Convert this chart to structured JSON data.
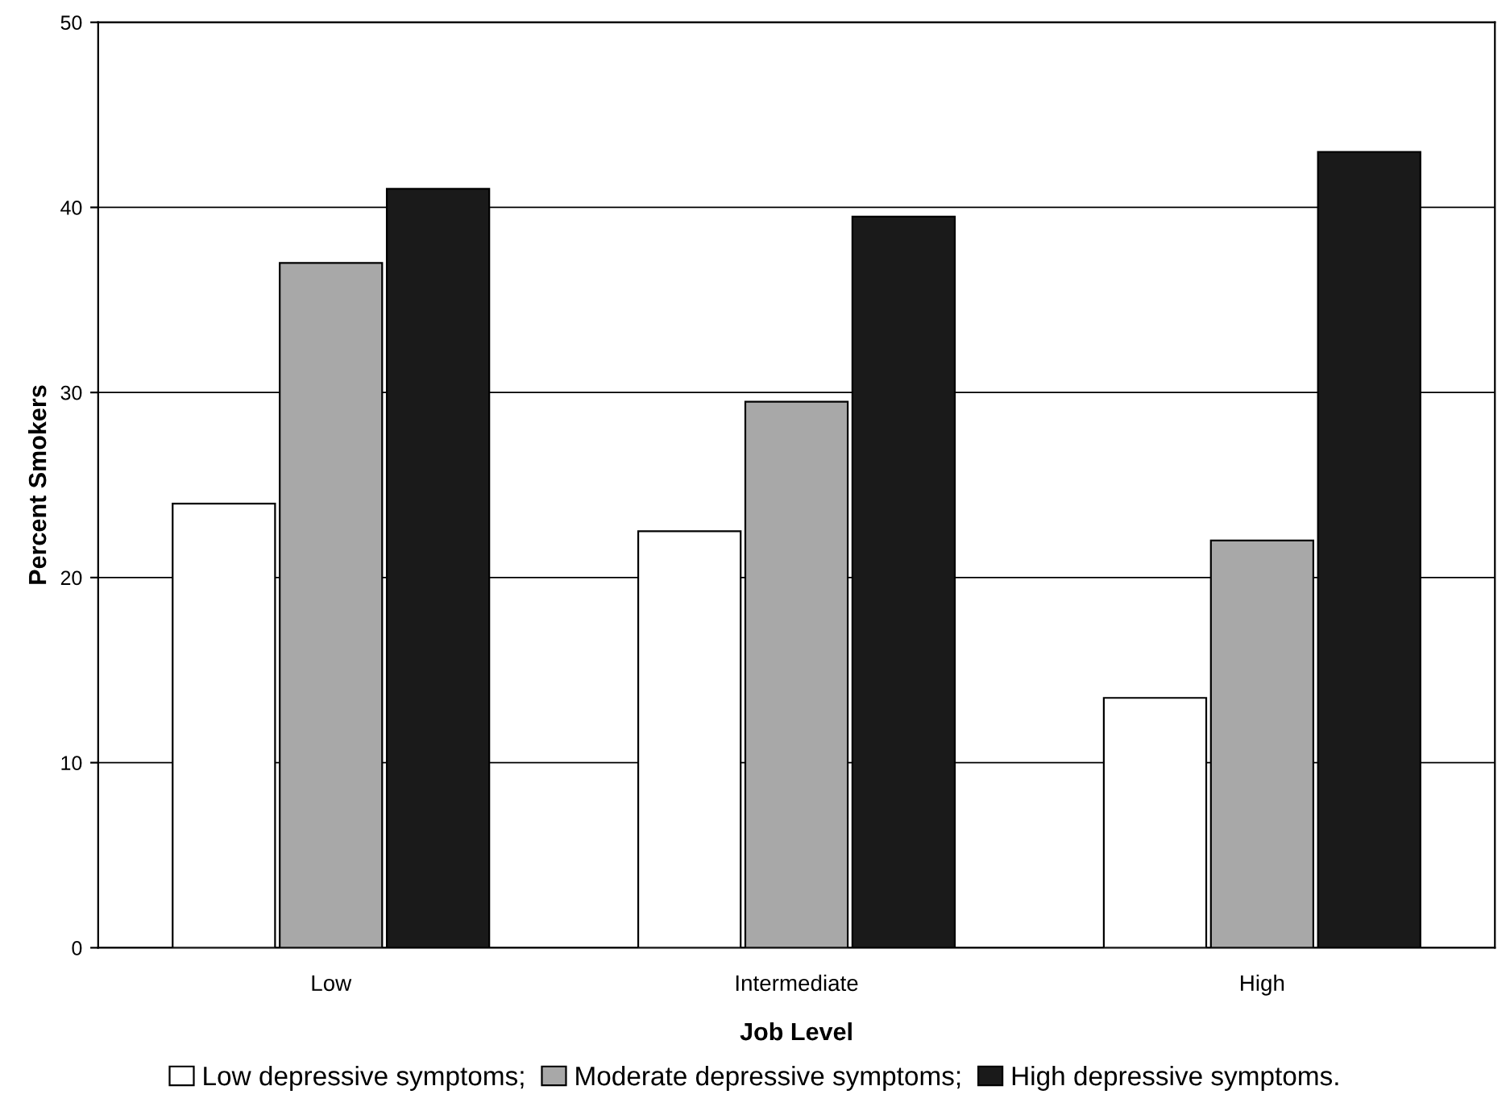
{
  "chart_data": {
    "type": "bar",
    "xlabel": "Job Level",
    "ylabel": "Percent Smokers",
    "categories": [
      "Low",
      "Intermediate",
      "High"
    ],
    "series": [
      {
        "name": "Low depressive symptoms;",
        "color": "#ffffff",
        "values": [
          24,
          22.5,
          13.5
        ]
      },
      {
        "name": "Moderate depressive symptoms;",
        "color": "#a8a8a8",
        "values": [
          37,
          29.5,
          22
        ]
      },
      {
        "name": "High depressive symptoms.",
        "color": "#1a1a1a",
        "values": [
          41,
          39.5,
          43
        ]
      }
    ],
    "ylim": [
      0,
      50
    ],
    "yticks": [
      0,
      10,
      20,
      30,
      40,
      50
    ],
    "grid": "y",
    "legend": "bottom"
  }
}
